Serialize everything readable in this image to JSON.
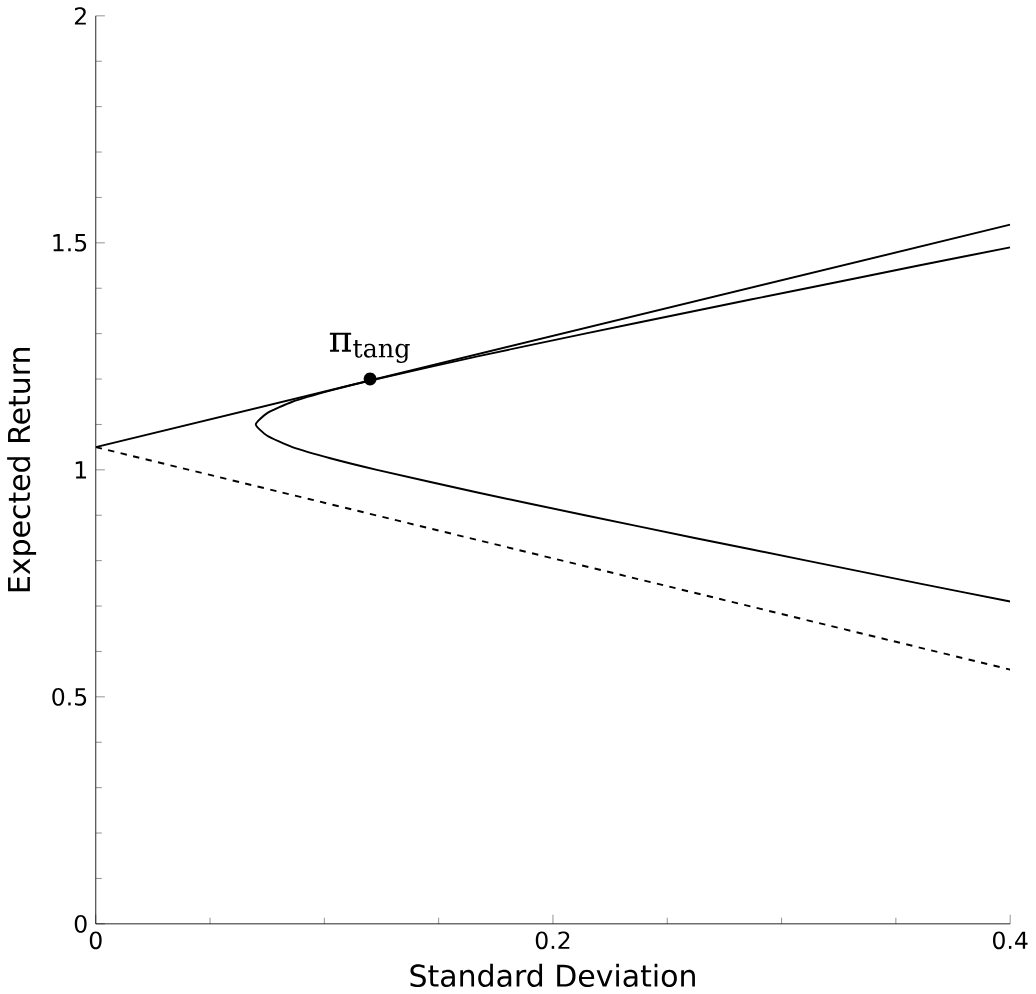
{
  "chart_data": {
    "type": "line",
    "xlabel": "Standard Deviation",
    "ylabel": "Expected Return",
    "xlim": [
      0,
      0.4
    ],
    "ylim": [
      0,
      2
    ],
    "xticks": [
      0,
      0.2,
      0.4
    ],
    "yticks": [
      0,
      0.5,
      1,
      1.5,
      2
    ],
    "grid": false,
    "series": [
      {
        "color": "#000000",
        "line_style": "solid",
        "x": [
          0,
          0.4
        ],
        "values": [
          1.05,
          1.54
        ]
      },
      {
        "color": "#000000",
        "line_style": "solid",
        "x": [
          0.4,
          0.36,
          0.311,
          0.262,
          0.214,
          0.167,
          0.123,
          0.103,
          0.086,
          0.075,
          0.07,
          0.075,
          0.086,
          0.103,
          0.123,
          0.167,
          0.214,
          0.262,
          0.311,
          0.36,
          0.4
        ],
        "values": [
          1.49,
          1.45,
          1.4,
          1.35,
          1.3,
          1.25,
          1.2,
          1.175,
          1.15,
          1.125,
          1.1,
          1.075,
          1.05,
          1.025,
          1.0,
          0.95,
          0.9,
          0.85,
          0.8,
          0.75,
          0.71
        ]
      },
      {
        "color": "#000000",
        "line_style": "dashed",
        "x": [
          0,
          0.4
        ],
        "values": [
          1.05,
          0.56
        ]
      },
      {
        "type": "scatter",
        "color": "#000000",
        "marker": "circle",
        "x": [
          0.12
        ],
        "values": [
          1.2
        ]
      }
    ],
    "annotations": [
      {
        "text": "π$_{tang}$",
        "x": 0.12,
        "y": 1.2
      }
    ]
  }
}
